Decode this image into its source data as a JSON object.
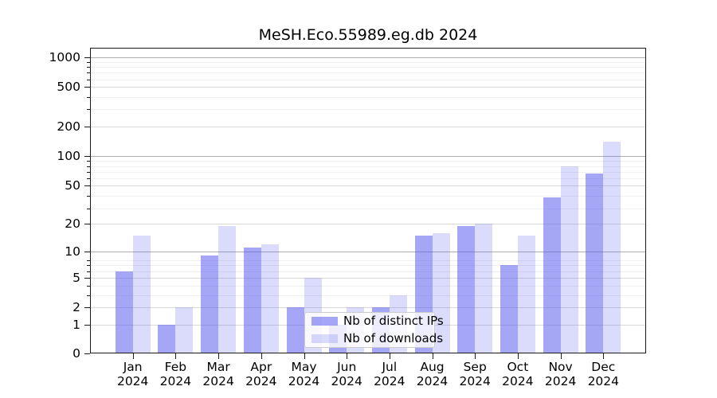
{
  "title": "MeSH.Eco.55989.eg.db 2024",
  "chart_data": {
    "type": "bar",
    "title": "MeSH.Eco.55989.eg.db 2024",
    "categories": [
      "Jan",
      "Feb",
      "Mar",
      "Apr",
      "May",
      "Jun",
      "Jul",
      "Aug",
      "Sep",
      "Oct",
      "Nov",
      "Dec"
    ],
    "year_label": "2024",
    "series": [
      {
        "name": "Nb of distinct IPs",
        "color": "rgba(85,85,238,0.52)",
        "values": [
          6,
          1,
          9,
          11,
          2,
          1,
          2,
          15,
          19,
          7,
          38,
          67
        ]
      },
      {
        "name": "Nb of downloads",
        "color": "rgba(85,85,238,0.21)",
        "values": [
          15,
          2,
          19,
          12,
          5,
          2,
          3,
          16,
          20,
          15,
          78,
          140
        ]
      }
    ],
    "xlabel": "",
    "ylabel": "",
    "yscale": "log10(value+1)",
    "ytick_values": [
      0,
      1,
      2,
      5,
      10,
      20,
      50,
      100,
      200,
      500,
      1000
    ],
    "ytick_labels": [
      "0",
      "1",
      "2",
      "5",
      "10",
      "20",
      "50",
      "100",
      "200",
      "500",
      "1000"
    ],
    "ylim": [
      0,
      1250
    ],
    "grid": "major and minor horizontal gridlines",
    "legend_position": "lower center, inside plot"
  },
  "colors": {
    "bar_base": "#5555ee",
    "grid_major": "#d9d9d9",
    "grid_decade": "#aeaeae",
    "grid_minor": "#efeff2",
    "spine": "#1a1a1a",
    "text": "#000000",
    "legend_border": "#cccccc",
    "legend_bg": "rgba(255,255,255,0.8)"
  }
}
